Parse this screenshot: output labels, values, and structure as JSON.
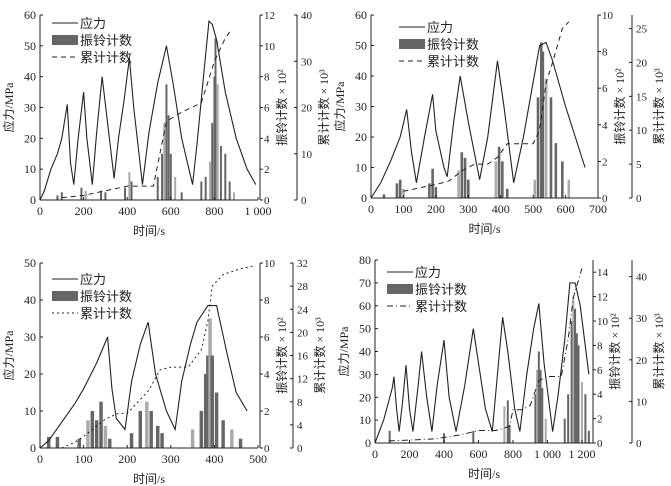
{
  "legend": {
    "stress": "应力",
    "ring": "振铃计数",
    "cumulative": "累计计数"
  },
  "colors": {
    "line": "#222222",
    "bars": "#666666",
    "bars_light": "#aaaaaa"
  },
  "chart_data": [
    {
      "type": "line+bar",
      "xlabel": "时间/s",
      "ylabel": "应力/MPa",
      "y2label": "振铃计数 × 10²",
      "y3label": "累计计数 × 10³",
      "xlim": [
        0,
        1000
      ],
      "ylim": [
        0,
        60
      ],
      "y2lim": [
        0,
        12
      ],
      "y3lim": [
        0,
        40
      ],
      "xticks": [
        [
          0,
          "0"
        ],
        [
          200,
          "200"
        ],
        [
          400,
          "400"
        ],
        [
          600,
          "600"
        ],
        [
          800,
          "800"
        ],
        [
          1000,
          "1 000"
        ]
      ],
      "yticks": [
        0,
        10,
        20,
        30,
        40,
        50,
        60
      ],
      "y2ticks": [
        0,
        2,
        4,
        6,
        8,
        10,
        12
      ],
      "y3ticks": [
        0,
        10,
        20,
        30,
        40
      ],
      "legend_placement": "top-left",
      "cumulative_style": "dashed",
      "stress": [
        [
          0,
          0
        ],
        [
          20,
          3
        ],
        [
          50,
          10
        ],
        [
          80,
          15
        ],
        [
          100,
          20
        ],
        [
          125,
          31
        ],
        [
          140,
          12
        ],
        [
          155,
          5
        ],
        [
          175,
          20
        ],
        [
          200,
          35
        ],
        [
          215,
          20
        ],
        [
          240,
          5
        ],
        [
          260,
          22
        ],
        [
          285,
          40
        ],
        [
          310,
          25
        ],
        [
          340,
          7
        ],
        [
          360,
          20
        ],
        [
          385,
          32
        ],
        [
          410,
          46
        ],
        [
          430,
          30
        ],
        [
          470,
          5
        ],
        [
          500,
          22
        ],
        [
          540,
          38
        ],
        [
          580,
          50
        ],
        [
          610,
          38
        ],
        [
          650,
          20
        ],
        [
          700,
          5
        ],
        [
          720,
          18
        ],
        [
          750,
          40
        ],
        [
          775,
          58
        ],
        [
          790,
          57
        ],
        [
          810,
          52
        ],
        [
          850,
          35
        ],
        [
          900,
          20
        ],
        [
          950,
          10
        ],
        [
          990,
          5
        ]
      ],
      "ring": [
        [
          80,
          0.3
        ],
        [
          100,
          0.5
        ],
        [
          190,
          0.8
        ],
        [
          210,
          0.6
        ],
        [
          280,
          0.6
        ],
        [
          300,
          0.5
        ],
        [
          390,
          0.8
        ],
        [
          410,
          1.8
        ],
        [
          420,
          1.2
        ],
        [
          540,
          1.5
        ],
        [
          560,
          3
        ],
        [
          570,
          5
        ],
        [
          580,
          7.5
        ],
        [
          590,
          5.5
        ],
        [
          600,
          3
        ],
        [
          620,
          1.5
        ],
        [
          650,
          0.5
        ],
        [
          740,
          1.2
        ],
        [
          760,
          1.5
        ],
        [
          780,
          2.5
        ],
        [
          790,
          5
        ],
        [
          800,
          8
        ],
        [
          805,
          10.5
        ],
        [
          815,
          7.5
        ],
        [
          830,
          3.5
        ],
        [
          850,
          3
        ],
        [
          870,
          1.2
        ],
        [
          890,
          0.5
        ]
      ],
      "cumulative": [
        [
          100,
          0.5
        ],
        [
          200,
          1
        ],
        [
          300,
          2
        ],
        [
          400,
          3
        ],
        [
          470,
          3
        ],
        [
          520,
          3
        ],
        [
          550,
          10
        ],
        [
          580,
          17
        ],
        [
          650,
          19
        ],
        [
          740,
          21
        ],
        [
          800,
          30
        ],
        [
          850,
          35
        ],
        [
          880,
          37
        ]
      ]
    },
    {
      "type": "line+bar",
      "xlabel": "时间/s",
      "ylabel": "应力/MPa",
      "y2label": "振铃计数 × 10²",
      "y3label": "累计计数 × 10³",
      "xlim": [
        0,
        700
      ],
      "ylim": [
        0,
        60
      ],
      "y2lim": [
        0,
        10
      ],
      "y3lim": [
        0,
        27
      ],
      "xticks": [
        [
          0,
          "0"
        ],
        [
          100,
          "100"
        ],
        [
          200,
          "200"
        ],
        [
          300,
          "300"
        ],
        [
          400,
          "400"
        ],
        [
          500,
          "500"
        ],
        [
          600,
          "600"
        ],
        [
          700,
          "700"
        ]
      ],
      "yticks": [
        0,
        10,
        20,
        30,
        40,
        50,
        60
      ],
      "y2ticks": [
        0,
        2,
        4,
        6,
        8,
        10
      ],
      "y3ticks": [
        0,
        5,
        10,
        15,
        20,
        25
      ],
      "legend_placement": "top-left",
      "cumulative_style": "dashed",
      "stress": [
        [
          0,
          0
        ],
        [
          30,
          5
        ],
        [
          60,
          12
        ],
        [
          90,
          20
        ],
        [
          110,
          29
        ],
        [
          125,
          15
        ],
        [
          140,
          5
        ],
        [
          165,
          20
        ],
        [
          190,
          34
        ],
        [
          200,
          22
        ],
        [
          225,
          10
        ],
        [
          235,
          7
        ],
        [
          255,
          25
        ],
        [
          275,
          40
        ],
        [
          300,
          25
        ],
        [
          335,
          6
        ],
        [
          360,
          20
        ],
        [
          390,
          45
        ],
        [
          410,
          30
        ],
        [
          440,
          5
        ],
        [
          470,
          20
        ],
        [
          500,
          38
        ],
        [
          520,
          50
        ],
        [
          540,
          51
        ],
        [
          560,
          45
        ],
        [
          600,
          30
        ],
        [
          630,
          20
        ],
        [
          660,
          10
        ]
      ],
      "ring": [
        [
          40,
          0.2
        ],
        [
          80,
          0.8
        ],
        [
          90,
          1
        ],
        [
          100,
          0.5
        ],
        [
          180,
          0.8
        ],
        [
          190,
          1.6
        ],
        [
          200,
          0.6
        ],
        [
          270,
          1.5
        ],
        [
          280,
          2.5
        ],
        [
          290,
          2.2
        ],
        [
          300,
          1
        ],
        [
          385,
          2
        ],
        [
          395,
          2.8
        ],
        [
          405,
          2
        ],
        [
          420,
          0.5
        ],
        [
          505,
          1
        ],
        [
          515,
          5.5
        ],
        [
          525,
          8.5
        ],
        [
          530,
          8
        ],
        [
          540,
          6.5
        ],
        [
          555,
          5.5
        ],
        [
          570,
          3
        ],
        [
          590,
          2
        ],
        [
          610,
          1
        ]
      ],
      "cumulative": [
        [
          100,
          1
        ],
        [
          150,
          1.5
        ],
        [
          200,
          2
        ],
        [
          240,
          2.5
        ],
        [
          280,
          4
        ],
        [
          320,
          5
        ],
        [
          360,
          5
        ],
        [
          390,
          6
        ],
        [
          420,
          8
        ],
        [
          500,
          8
        ],
        [
          520,
          10
        ],
        [
          540,
          17
        ],
        [
          560,
          20
        ],
        [
          590,
          25
        ],
        [
          610,
          26
        ]
      ]
    },
    {
      "type": "line+bar",
      "xlabel": "时间/s",
      "ylabel": "应力/MPa",
      "y2label": "振铃计数 × 10²",
      "y3label": "累计计数 × 10³",
      "xlim": [
        0,
        500
      ],
      "ylim": [
        0,
        50
      ],
      "y2lim": [
        0,
        10
      ],
      "y3lim": [
        0,
        32
      ],
      "xticks": [
        [
          0,
          "0"
        ],
        [
          100,
          "100"
        ],
        [
          200,
          "200"
        ],
        [
          300,
          "300"
        ],
        [
          400,
          "400"
        ],
        [
          500,
          "500"
        ]
      ],
      "yticks": [
        0,
        10,
        20,
        30,
        40,
        50
      ],
      "y2ticks": [
        0,
        2,
        4,
        6,
        8,
        10
      ],
      "y3ticks": [
        0,
        4,
        8,
        12,
        16,
        20,
        24,
        28,
        32
      ],
      "legend_placement": "top-left",
      "cumulative_style": "dotted",
      "stress": [
        [
          0,
          0
        ],
        [
          20,
          2
        ],
        [
          50,
          7
        ],
        [
          80,
          12
        ],
        [
          100,
          16
        ],
        [
          130,
          23
        ],
        [
          155,
          30
        ],
        [
          165,
          16
        ],
        [
          175,
          8
        ],
        [
          195,
          5
        ],
        [
          210,
          18
        ],
        [
          230,
          28
        ],
        [
          248,
          34
        ],
        [
          265,
          20
        ],
        [
          290,
          10
        ],
        [
          310,
          5
        ],
        [
          325,
          18
        ],
        [
          345,
          28
        ],
        [
          360,
          34
        ],
        [
          385,
          38.5
        ],
        [
          405,
          38.5
        ],
        [
          430,
          25
        ],
        [
          450,
          15
        ],
        [
          475,
          10
        ]
      ],
      "ring": [
        [
          20,
          0.6
        ],
        [
          40,
          0.6
        ],
        [
          90,
          0.5
        ],
        [
          110,
          1.5
        ],
        [
          120,
          2
        ],
        [
          130,
          1.5
        ],
        [
          140,
          2.5
        ],
        [
          150,
          1.2
        ],
        [
          160,
          0.5
        ],
        [
          210,
          0.8
        ],
        [
          230,
          2
        ],
        [
          245,
          2.5
        ],
        [
          255,
          2
        ],
        [
          270,
          1.2
        ],
        [
          280,
          0.8
        ],
        [
          350,
          1
        ],
        [
          370,
          2
        ],
        [
          380,
          4
        ],
        [
          385,
          5
        ],
        [
          390,
          7
        ],
        [
          395,
          5
        ],
        [
          405,
          3
        ],
        [
          420,
          1.5
        ],
        [
          440,
          1
        ],
        [
          460,
          0.5
        ]
      ],
      "cumulative": [
        [
          50,
          0
        ],
        [
          80,
          1
        ],
        [
          100,
          2
        ],
        [
          150,
          5
        ],
        [
          180,
          6
        ],
        [
          200,
          6
        ],
        [
          250,
          10
        ],
        [
          275,
          13.5
        ],
        [
          300,
          14
        ],
        [
          340,
          14
        ],
        [
          370,
          17
        ],
        [
          385,
          22
        ],
        [
          395,
          28
        ],
        [
          420,
          30
        ],
        [
          460,
          31
        ],
        [
          490,
          31.5
        ]
      ]
    },
    {
      "type": "line+bar",
      "xlabel": "时间/s",
      "ylabel": "应力/MPa",
      "y2label": "振铃计数 × 10²",
      "y3label": "累计计数 × 10³",
      "xlim": [
        0,
        1264
      ],
      "ylim": [
        0,
        80
      ],
      "y2lim": [
        0,
        15
      ],
      "y3lim": [
        0,
        44
      ],
      "xticks": [
        [
          0,
          "0"
        ],
        [
          200,
          "200"
        ],
        [
          400,
          "400"
        ],
        [
          600,
          "600"
        ],
        [
          800,
          "800"
        ],
        [
          1000,
          "1 000"
        ],
        [
          1200,
          "1 200"
        ]
      ],
      "yticks": [
        0,
        10,
        20,
        30,
        40,
        50,
        60,
        70,
        80
      ],
      "y2ticks": [
        0,
        2,
        4,
        6,
        8,
        10,
        12,
        14
      ],
      "y3ticks": [
        0,
        10,
        20,
        30,
        40
      ],
      "legend_placement": "top-left",
      "cumulative_style": "dash-dot",
      "stress": [
        [
          0,
          0
        ],
        [
          50,
          10
        ],
        [
          100,
          24
        ],
        [
          110,
          29
        ],
        [
          125,
          15
        ],
        [
          140,
          5
        ],
        [
          160,
          18
        ],
        [
          180,
          34
        ],
        [
          200,
          15
        ],
        [
          220,
          5
        ],
        [
          250,
          25
        ],
        [
          270,
          40
        ],
        [
          300,
          20
        ],
        [
          330,
          5
        ],
        [
          360,
          25
        ],
        [
          400,
          45
        ],
        [
          430,
          20
        ],
        [
          470,
          5
        ],
        [
          520,
          25
        ],
        [
          570,
          50
        ],
        [
          600,
          35
        ],
        [
          640,
          15
        ],
        [
          680,
          5
        ],
        [
          710,
          30
        ],
        [
          740,
          55
        ],
        [
          770,
          40
        ],
        [
          810,
          15
        ],
        [
          840,
          5
        ],
        [
          880,
          30
        ],
        [
          920,
          50
        ],
        [
          950,
          61
        ],
        [
          980,
          35
        ],
        [
          1030,
          5
        ],
        [
          1060,
          20
        ],
        [
          1100,
          45
        ],
        [
          1130,
          70
        ],
        [
          1160,
          70
        ],
        [
          1190,
          60
        ],
        [
          1240,
          30
        ]
      ],
      "ring": [
        [
          85,
          1
        ],
        [
          400,
          0.8
        ],
        [
          570,
          1
        ],
        [
          750,
          3
        ],
        [
          770,
          3.5
        ],
        [
          780,
          1.5
        ],
        [
          930,
          4
        ],
        [
          940,
          6
        ],
        [
          950,
          7.5
        ],
        [
          960,
          6
        ],
        [
          970,
          4.5
        ],
        [
          990,
          2
        ],
        [
          1100,
          2
        ],
        [
          1120,
          4
        ],
        [
          1140,
          10
        ],
        [
          1150,
          12
        ],
        [
          1160,
          11
        ],
        [
          1170,
          9
        ],
        [
          1180,
          8
        ],
        [
          1200,
          5
        ],
        [
          1220,
          4
        ],
        [
          1240,
          1
        ]
      ],
      "cumulative": [
        [
          80,
          0.5
        ],
        [
          200,
          0.7
        ],
        [
          350,
          1
        ],
        [
          500,
          2
        ],
        [
          600,
          3
        ],
        [
          700,
          3
        ],
        [
          780,
          4
        ],
        [
          800,
          8
        ],
        [
          850,
          8
        ],
        [
          900,
          9
        ],
        [
          950,
          15
        ],
        [
          1000,
          16
        ],
        [
          1080,
          16
        ],
        [
          1120,
          25
        ],
        [
          1150,
          35
        ],
        [
          1200,
          42
        ]
      ]
    }
  ]
}
